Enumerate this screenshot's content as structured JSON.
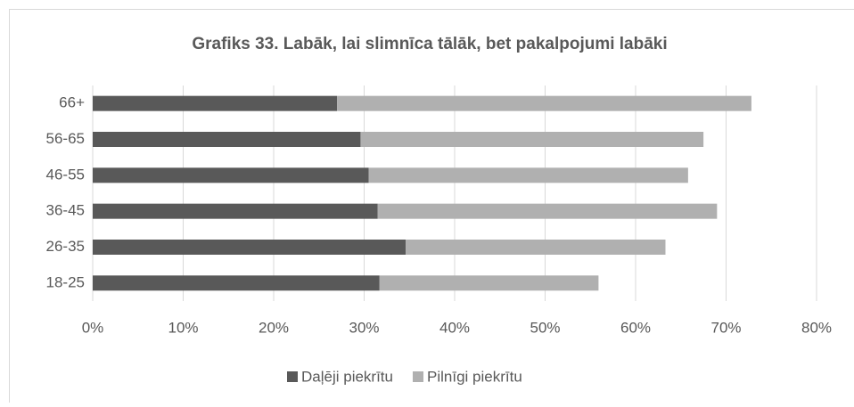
{
  "chart_data": {
    "type": "stacked_bar_horizontal",
    "title": "Grafiks 33. Labāk, lai slimnīca tālāk, bet pakalpojumi labāki",
    "categories": [
      "66+",
      "56-65",
      "46-55",
      "36-45",
      "26-35",
      "18-25"
    ],
    "series": [
      {
        "name": "Daļēji piekrītu",
        "color": "#595959",
        "values": [
          27.0,
          29.6,
          30.5,
          31.5,
          34.6,
          31.7
        ]
      },
      {
        "name": "Pilnīgi piekrītu",
        "color": "#b0b0b0",
        "values": [
          45.8,
          37.9,
          35.3,
          37.5,
          28.7,
          24.2
        ]
      }
    ],
    "xlim": [
      0,
      80
    ],
    "xticks": [
      {
        "value": 0,
        "label": "0%"
      },
      {
        "value": 10,
        "label": "10%"
      },
      {
        "value": 20,
        "label": "20%"
      },
      {
        "value": 30,
        "label": "30%"
      },
      {
        "value": 40,
        "label": "40%"
      },
      {
        "value": 50,
        "label": "50%"
      },
      {
        "value": 60,
        "label": "60%"
      },
      {
        "value": 70,
        "label": "70%"
      },
      {
        "value": 80,
        "label": "80%"
      }
    ],
    "grid": true,
    "legend": "bottom"
  }
}
